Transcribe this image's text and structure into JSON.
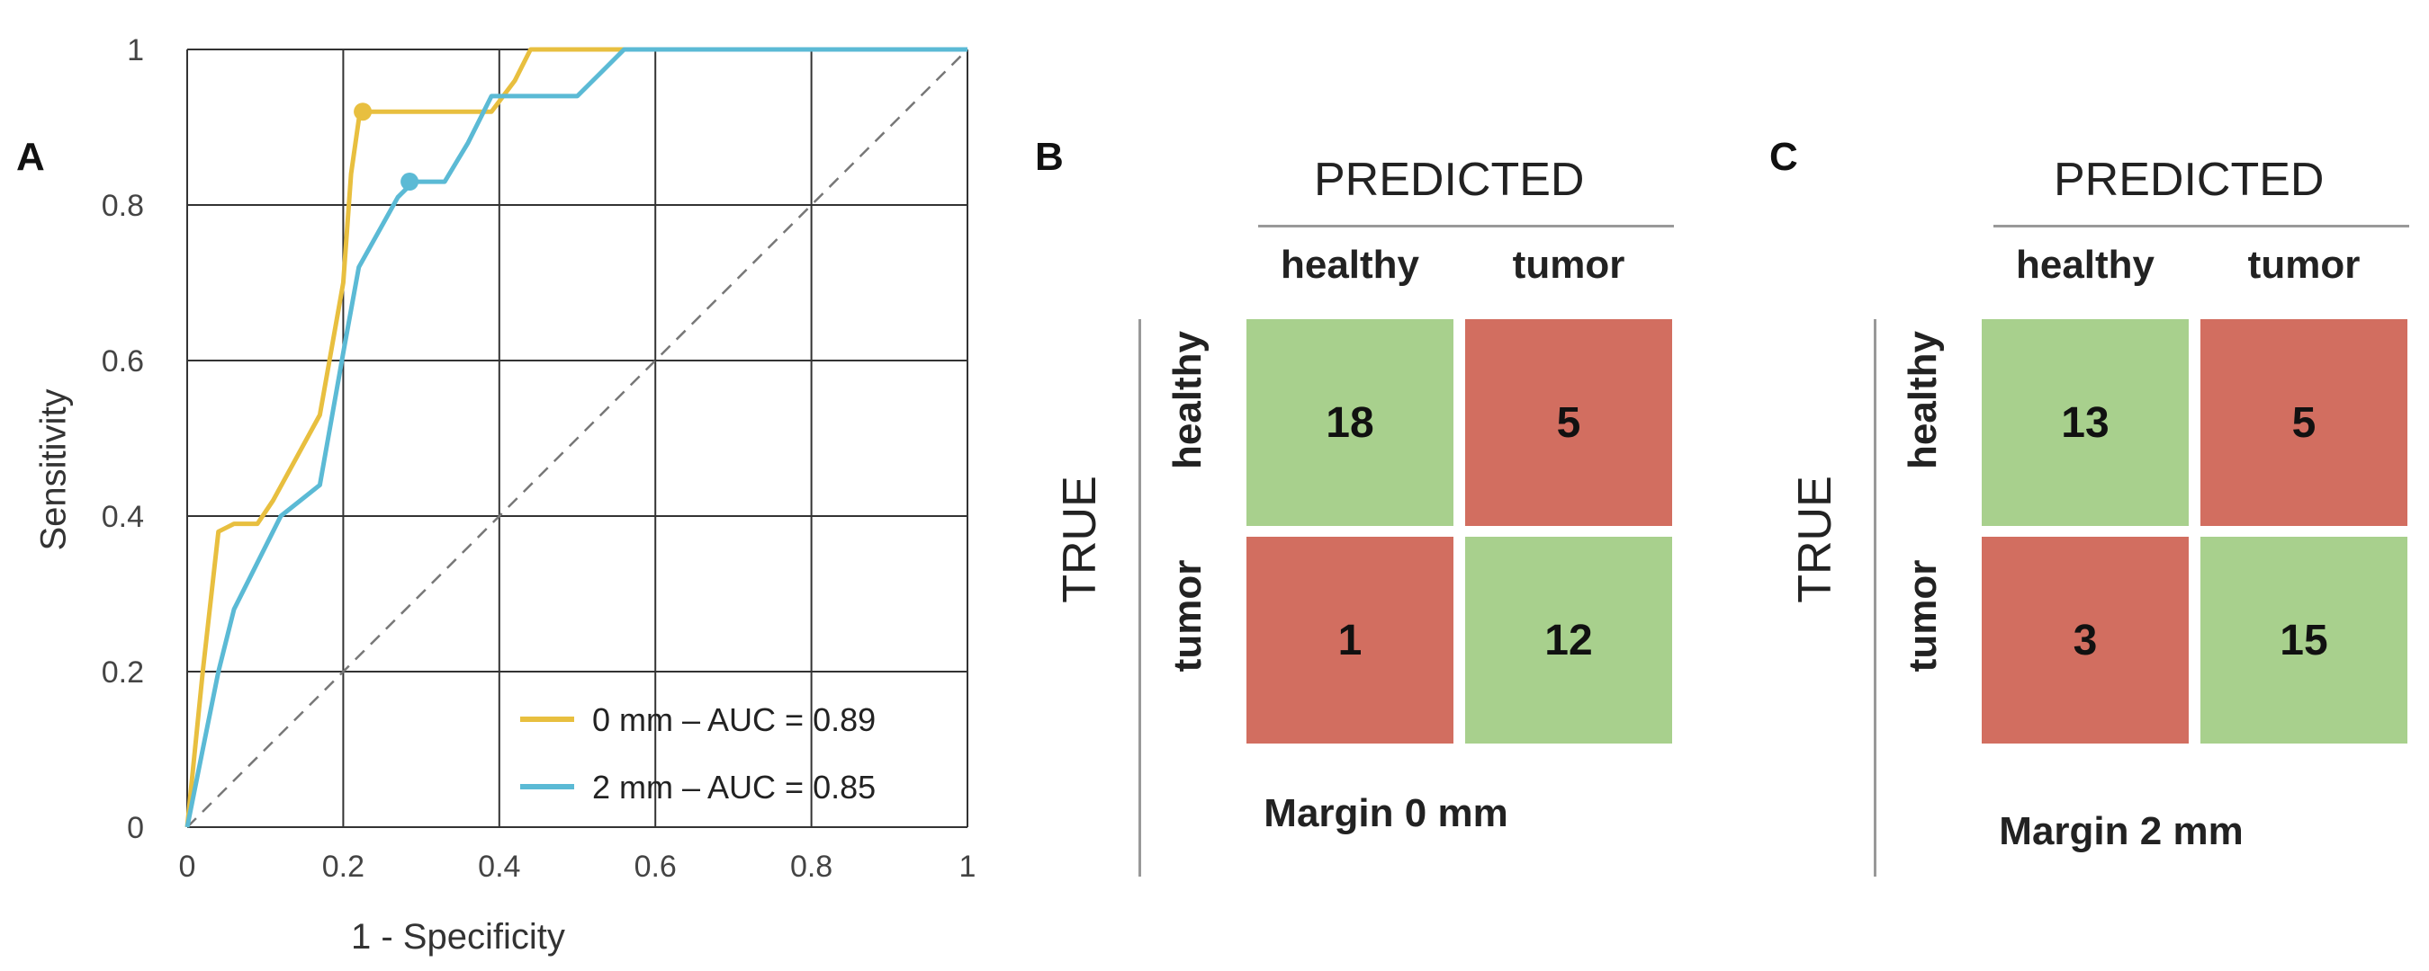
{
  "panels": {
    "a_letter": "A",
    "b_letter": "B",
    "c_letter": "C"
  },
  "chart_data": [
    {
      "type": "line",
      "xlabel": "1 - Specificity",
      "ylabel": "Sensitivity",
      "xlim": [
        0,
        1
      ],
      "ylim": [
        0,
        1
      ],
      "x_ticks": [
        "0",
        "0.2",
        "0.4",
        "0.6",
        "0.8",
        "1"
      ],
      "y_ticks": [
        "0",
        "0.2",
        "0.4",
        "0.6",
        "0.8",
        "1"
      ],
      "grid": true,
      "diagonal_reference": true,
      "legend_position": "bottom-right",
      "series": [
        {
          "name": "0 mm – AUC = 0.89",
          "color": "#e8bf3f",
          "points": [
            [
              0,
              0
            ],
            [
              0.02,
              0.2
            ],
            [
              0.04,
              0.38
            ],
            [
              0.06,
              0.39
            ],
            [
              0.09,
              0.39
            ],
            [
              0.11,
              0.42
            ],
            [
              0.17,
              0.53
            ],
            [
              0.2,
              0.7
            ],
            [
              0.21,
              0.84
            ],
            [
              0.22,
              0.91
            ],
            [
              0.23,
              0.92
            ],
            [
              0.39,
              0.92
            ],
            [
              0.42,
              0.96
            ],
            [
              0.44,
              1.0
            ],
            [
              0.56,
              1.0
            ],
            [
              1.0,
              1.0
            ]
          ],
          "marker": [
            0.225,
            0.92
          ]
        },
        {
          "name": "2 mm – AUC = 0.85",
          "color": "#5bbad5",
          "points": [
            [
              0,
              0
            ],
            [
              0.02,
              0.1
            ],
            [
              0.04,
              0.2
            ],
            [
              0.06,
              0.28
            ],
            [
              0.09,
              0.34
            ],
            [
              0.12,
              0.4
            ],
            [
              0.17,
              0.44
            ],
            [
              0.2,
              0.61
            ],
            [
              0.22,
              0.72
            ],
            [
              0.27,
              0.81
            ],
            [
              0.29,
              0.83
            ],
            [
              0.33,
              0.83
            ],
            [
              0.36,
              0.88
            ],
            [
              0.39,
              0.94
            ],
            [
              0.5,
              0.94
            ],
            [
              0.53,
              0.97
            ],
            [
              0.56,
              1.0
            ],
            [
              1.0,
              1.0
            ]
          ],
          "marker": [
            0.285,
            0.83
          ]
        }
      ]
    },
    {
      "type": "table",
      "title": "Margin 0 mm",
      "header": "PREDICTED",
      "row_axis_label": "TRUE",
      "columns": [
        "healthy",
        "tumor"
      ],
      "rows": [
        "healthy",
        "tumor"
      ],
      "values": [
        [
          18,
          5
        ],
        [
          1,
          12
        ]
      ]
    },
    {
      "type": "table",
      "title": "Margin 2 mm",
      "header": "PREDICTED",
      "row_axis_label": "TRUE",
      "columns": [
        "healthy",
        "tumor"
      ],
      "rows": [
        "healthy",
        "tumor"
      ],
      "values": [
        [
          13,
          5
        ],
        [
          3,
          15
        ]
      ]
    }
  ],
  "colors": {
    "correct_cell": "#a8d08d",
    "wrong_cell": "#d26e60",
    "grid": "#333333",
    "diagonal": "#777777"
  }
}
